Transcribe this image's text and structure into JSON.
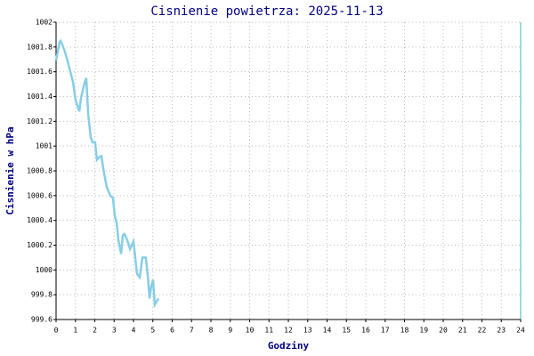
{
  "chart_data": {
    "type": "line",
    "title": "Cisnienie powietrza: 2025-11-13",
    "xlabel": "Godziny",
    "ylabel": "Cisnienie w hPa",
    "x": [
      0,
      0.18,
      0.23,
      0.32,
      0.46,
      0.64,
      0.87,
      1.01,
      1.2,
      1.29,
      1.47,
      1.56,
      1.66,
      1.79,
      1.89,
      2.02,
      2.11,
      2.21,
      2.34,
      2.48,
      2.62,
      2.8,
      2.94,
      3.03,
      3.13,
      3.22,
      3.36,
      3.45,
      3.54,
      3.68,
      3.82,
      4.0,
      4.09,
      4.18,
      4.32,
      4.46,
      4.64,
      4.74,
      4.83,
      4.92,
      5.01,
      5.1,
      5.29
    ],
    "series": [
      {
        "color": "#87cde6",
        "values": [
          1001.69,
          1001.84,
          1001.85,
          1001.82,
          1001.76,
          1001.66,
          1001.52,
          1001.37,
          1001.28,
          1001.39,
          1001.51,
          1001.55,
          1001.26,
          1001.07,
          1001.03,
          1001.03,
          1000.89,
          1000.91,
          1000.92,
          1000.78,
          1000.67,
          1000.6,
          1000.58,
          1000.44,
          1000.38,
          1000.24,
          1000.13,
          1000.28,
          1000.29,
          1000.24,
          1000.17,
          1000.23,
          1000.1,
          999.97,
          999.94,
          1000.1,
          1000.1,
          999.95,
          999.77,
          999.87,
          999.92,
          999.72,
          999.77
        ]
      }
    ],
    "xlim": [
      0,
      24
    ],
    "xticks": [
      0,
      1,
      2,
      3,
      4,
      5,
      6,
      7,
      8,
      9,
      10,
      11,
      12,
      13,
      14,
      15,
      16,
      17,
      18,
      19,
      20,
      21,
      22,
      23,
      24
    ],
    "ylim": [
      999.6,
      1002
    ],
    "yticks": [
      999.6,
      999.8,
      1000,
      1000.2,
      1000.4,
      1000.6,
      1000.8,
      1001,
      1001.2,
      1001.4,
      1001.6,
      1001.8,
      1002
    ],
    "grid": true
  }
}
